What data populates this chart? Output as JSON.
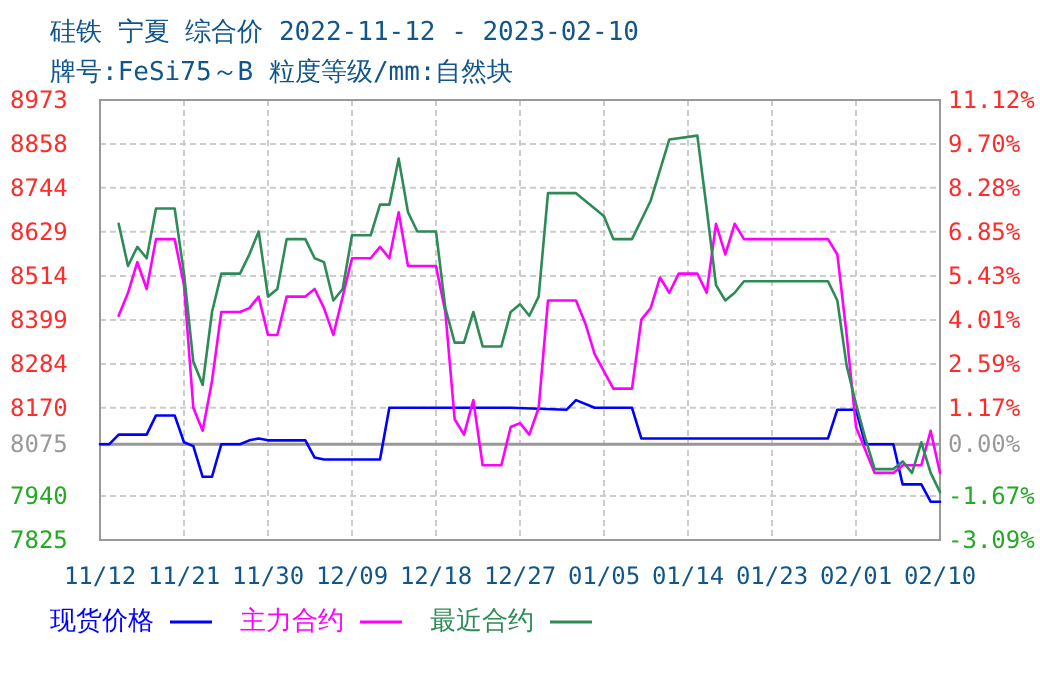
{
  "chart_data": {
    "type": "line",
    "title": "硅铁 宁夏 综合价 2022-11-12 - 2023-02-10",
    "subtitle": "牌号:FeSi75～B 粒度等级/mm:自然块",
    "xlim": [
      "2022-11-12",
      "2023-02-10"
    ],
    "xticks": [
      {
        "value": "2022-11-12",
        "label": "11/12"
      },
      {
        "value": "2022-11-21",
        "label": "11/21"
      },
      {
        "value": "2022-11-30",
        "label": "11/30"
      },
      {
        "value": "2022-12-09",
        "label": "12/09"
      },
      {
        "value": "2022-12-18",
        "label": "12/18"
      },
      {
        "value": "2022-12-27",
        "label": "12/27"
      },
      {
        "value": "2023-01-05",
        "label": "01/05"
      },
      {
        "value": "2023-01-14",
        "label": "01/14"
      },
      {
        "value": "2023-01-23",
        "label": "01/23"
      },
      {
        "value": "2023-02-01",
        "label": "02/01"
      },
      {
        "value": "2023-02-10",
        "label": "02/10"
      }
    ],
    "ylim": [
      7825,
      8973
    ],
    "yticks": [
      7825,
      7940,
      8075,
      8170,
      8284,
      8399,
      8514,
      8629,
      8744,
      8858,
      8973
    ],
    "y2lim": [
      -3.09,
      11.12
    ],
    "y2ticks": [
      {
        "value": -3.09,
        "label": "-3.09%"
      },
      {
        "value": -1.67,
        "label": "-1.67%"
      },
      {
        "value": 0,
        "label": "0.00%"
      },
      {
        "value": 1.17,
        "label": "1.17%"
      },
      {
        "value": 2.59,
        "label": "2.59%"
      },
      {
        "value": 4.01,
        "label": "4.01%"
      },
      {
        "value": 5.43,
        "label": "5.43%"
      },
      {
        "value": 6.85,
        "label": "6.85%"
      },
      {
        "value": 8.28,
        "label": "8.28%"
      },
      {
        "value": 9.7,
        "label": "9.70%"
      },
      {
        "value": 11.12,
        "label": "11.12%"
      }
    ],
    "ref_lines": [
      {
        "axis": "y",
        "value": 8075,
        "color": "#999999"
      }
    ],
    "grid": true,
    "legend": "bottom",
    "line_style": "solid",
    "series": [
      {
        "name": "现货价格",
        "color": "#0000ff",
        "x": [
          "2022-11-12",
          "2022-11-13",
          "2022-11-14",
          "2022-11-17",
          "2022-11-18",
          "2022-11-20",
          "2022-11-21",
          "2022-11-22",
          "2022-11-23",
          "2022-11-24",
          "2022-11-25",
          "2022-11-27",
          "2022-11-28",
          "2022-11-29",
          "2022-11-30",
          "2022-12-04",
          "2022-12-05",
          "2022-12-06",
          "2022-12-12",
          "2022-12-13",
          "2022-12-26",
          "2023-01-01",
          "2023-01-02",
          "2023-01-04",
          "2023-01-08",
          "2023-01-09",
          "2023-01-29",
          "2023-01-30",
          "2023-02-01",
          "2023-02-02",
          "2023-02-05",
          "2023-02-06",
          "2023-02-08",
          "2023-02-09",
          "2023-02-10"
        ],
        "values": [
          8075,
          8075,
          8100,
          8100,
          8150,
          8150,
          8080,
          8070,
          7990,
          7990,
          8075,
          8075,
          8085,
          8090,
          8085,
          8085,
          8040,
          8035,
          8035,
          8170,
          8170,
          8165,
          8190,
          8170,
          8170,
          8090,
          8090,
          8165,
          8165,
          8075,
          8075,
          7970,
          7970,
          7925,
          7925
        ]
      },
      {
        "name": "主力合约",
        "color": "#ff00ff",
        "x": [
          "2022-11-14",
          "2022-11-15",
          "2022-11-16",
          "2022-11-17",
          "2022-11-18",
          "2022-11-20",
          "2022-11-21",
          "2022-11-22",
          "2022-11-23",
          "2022-11-24",
          "2022-11-25",
          "2022-11-27",
          "2022-11-28",
          "2022-11-29",
          "2022-11-30",
          "2022-12-01",
          "2022-12-02",
          "2022-12-04",
          "2022-12-05",
          "2022-12-06",
          "2022-12-07",
          "2022-12-08",
          "2022-12-09",
          "2022-12-11",
          "2022-12-12",
          "2022-12-13",
          "2022-12-14",
          "2022-12-15",
          "2022-12-18",
          "2022-12-19",
          "2022-12-20",
          "2022-12-21",
          "2022-12-22",
          "2022-12-23",
          "2022-12-25",
          "2022-12-26",
          "2022-12-27",
          "2022-12-28",
          "2022-12-29",
          "2022-12-30",
          "2023-01-02",
          "2023-01-03",
          "2023-01-04",
          "2023-01-06",
          "2023-01-08",
          "2023-01-09",
          "2023-01-10",
          "2023-01-11",
          "2023-01-12",
          "2023-01-13",
          "2023-01-15",
          "2023-01-16",
          "2023-01-17",
          "2023-01-18",
          "2023-01-19",
          "2023-01-20",
          "2023-01-29",
          "2023-01-30",
          "2023-01-31",
          "2023-02-01",
          "2023-02-02",
          "2023-02-03",
          "2023-02-05",
          "2023-02-06",
          "2023-02-08",
          "2023-02-09",
          "2023-02-10"
        ],
        "values": [
          8410,
          8470,
          8550,
          8480,
          8610,
          8610,
          8490,
          8170,
          8110,
          8240,
          8420,
          8420,
          8430,
          8460,
          8360,
          8360,
          8460,
          8460,
          8480,
          8430,
          8360,
          8460,
          8560,
          8560,
          8590,
          8560,
          8680,
          8540,
          8540,
          8420,
          8140,
          8100,
          8190,
          8020,
          8020,
          8120,
          8130,
          8100,
          8170,
          8450,
          8450,
          8390,
          8310,
          8220,
          8220,
          8400,
          8430,
          8510,
          8470,
          8520,
          8520,
          8470,
          8650,
          8570,
          8650,
          8610,
          8610,
          8570,
          8360,
          8120,
          8060,
          8000,
          8000,
          8020,
          8020,
          8110,
          8000
        ]
      },
      {
        "name": "最近合约",
        "color": "#2e8b57",
        "x": [
          "2022-11-14",
          "2022-11-15",
          "2022-11-16",
          "2022-11-17",
          "2022-11-18",
          "2022-11-20",
          "2022-11-21",
          "2022-11-22",
          "2022-11-23",
          "2022-11-24",
          "2022-11-25",
          "2022-11-27",
          "2022-11-28",
          "2022-11-29",
          "2022-11-30",
          "2022-12-01",
          "2022-12-02",
          "2022-12-04",
          "2022-12-05",
          "2022-12-06",
          "2022-12-07",
          "2022-12-08",
          "2022-12-09",
          "2022-12-11",
          "2022-12-12",
          "2022-12-13",
          "2022-12-14",
          "2022-12-15",
          "2022-12-16",
          "2022-12-18",
          "2022-12-19",
          "2022-12-20",
          "2022-12-21",
          "2022-12-22",
          "2022-12-23",
          "2022-12-25",
          "2022-12-26",
          "2022-12-27",
          "2022-12-28",
          "2022-12-29",
          "2022-12-30",
          "2023-01-02",
          "2023-01-04",
          "2023-01-05",
          "2023-01-06",
          "2023-01-08",
          "2023-01-09",
          "2023-01-10",
          "2023-01-12",
          "2023-01-15",
          "2023-01-16",
          "2023-01-17",
          "2023-01-18",
          "2023-01-19",
          "2023-01-20",
          "2023-01-29",
          "2023-01-30",
          "2023-01-31",
          "2023-02-01",
          "2023-02-02",
          "2023-02-03",
          "2023-02-05",
          "2023-02-06",
          "2023-02-07",
          "2023-02-08",
          "2023-02-09",
          "2023-02-10"
        ],
        "values": [
          8650,
          8540,
          8590,
          8560,
          8690,
          8690,
          8520,
          8290,
          8230,
          8420,
          8520,
          8520,
          8570,
          8630,
          8460,
          8480,
          8610,
          8610,
          8560,
          8550,
          8450,
          8480,
          8620,
          8620,
          8700,
          8700,
          8820,
          8680,
          8630,
          8630,
          8430,
          8340,
          8340,
          8420,
          8330,
          8330,
          8420,
          8440,
          8410,
          8460,
          8730,
          8730,
          8690,
          8670,
          8610,
          8610,
          8660,
          8710,
          8870,
          8880,
          8690,
          8490,
          8450,
          8470,
          8500,
          8500,
          8450,
          8280,
          8180,
          8090,
          8010,
          8010,
          8030,
          8000,
          8080,
          8000,
          7950
        ]
      }
    ]
  }
}
